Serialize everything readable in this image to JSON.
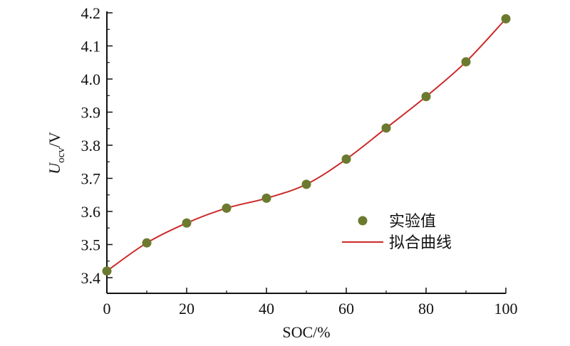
{
  "chart_data": {
    "type": "line",
    "xlabel": "SOC/%",
    "ylabel": {
      "main": "U",
      "sub": "ocv",
      "suffix": "/V"
    },
    "xlim": [
      0,
      100
    ],
    "ylim": [
      3.35,
      4.2
    ],
    "x_ticks": [
      0,
      20,
      40,
      60,
      80,
      100
    ],
    "x_tick_labels": [
      "0",
      "20",
      "40",
      "60",
      "80",
      "100"
    ],
    "y_ticks": [
      3.4,
      3.5,
      3.6,
      3.7,
      3.8,
      3.9,
      4.0,
      4.1,
      4.2
    ],
    "y_tick_labels": [
      "3.4",
      "3.5",
      "3.6",
      "3.7",
      "3.8",
      "3.9",
      "4.0",
      "4.1",
      "4.2"
    ],
    "grid": false,
    "legend_position": "right",
    "series": [
      {
        "name": "实验值",
        "kind": "scatter",
        "color": "#6b7a2e",
        "x": [
          0,
          10,
          20,
          30,
          40,
          50,
          60,
          70,
          80,
          90,
          100
        ],
        "y": [
          3.42,
          3.505,
          3.565,
          3.61,
          3.64,
          3.682,
          3.758,
          3.852,
          3.947,
          4.052,
          4.182
        ]
      },
      {
        "name": "拟合曲线",
        "kind": "line",
        "color": "#cc2a2a",
        "x": [
          0,
          10,
          20,
          30,
          40,
          50,
          60,
          70,
          80,
          90,
          100
        ],
        "y": [
          3.42,
          3.505,
          3.565,
          3.61,
          3.64,
          3.682,
          3.758,
          3.852,
          3.947,
          4.052,
          4.182
        ]
      }
    ]
  }
}
